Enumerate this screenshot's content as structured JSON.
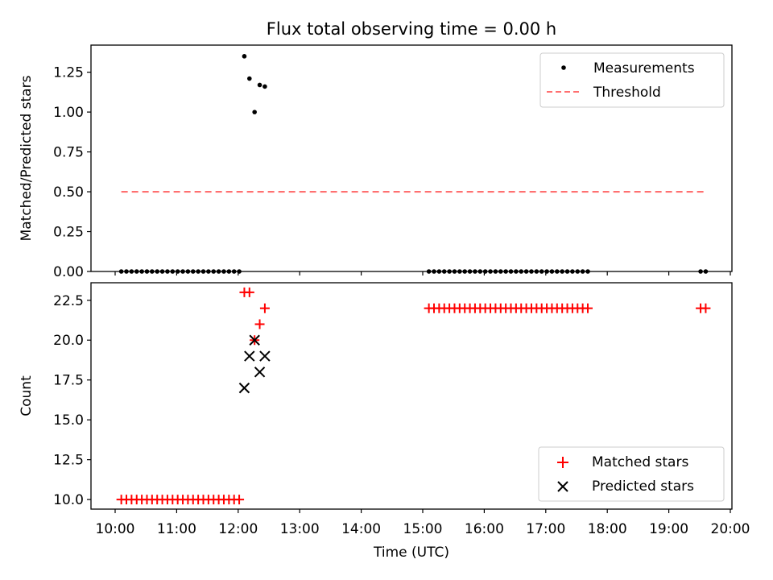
{
  "chart_data": [
    {
      "type": "scatter",
      "title": "Flux total observing time = 0.00 h",
      "ylabel": "Matched/Predicted stars",
      "ylim": [
        0,
        1.42
      ],
      "yticks": [
        "0.00",
        "0.25",
        "0.50",
        "0.75",
        "1.00",
        "1.25"
      ],
      "ytick_values": [
        0,
        0.25,
        0.5,
        0.75,
        1.0,
        1.25
      ],
      "grid": false,
      "legend": {
        "placement": "top-right",
        "entries": [
          "Measurements",
          "Threshold"
        ]
      },
      "series": [
        {
          "name": "Measurements",
          "marker": "dot",
          "color": "#000000",
          "x": [
            "10:06",
            "10:11",
            "10:16",
            "10:21",
            "10:26",
            "10:31",
            "10:36",
            "10:41",
            "10:46",
            "10:51",
            "10:56",
            "11:01",
            "11:06",
            "11:11",
            "11:16",
            "11:21",
            "11:26",
            "11:31",
            "11:36",
            "11:41",
            "11:46",
            "11:51",
            "11:56",
            "12:01",
            "12:06",
            "12:11",
            "12:16",
            "12:21",
            "12:26",
            "15:06",
            "15:11",
            "15:16",
            "15:21",
            "15:26",
            "15:31",
            "15:36",
            "15:41",
            "15:46",
            "15:51",
            "15:56",
            "16:01",
            "16:06",
            "16:11",
            "16:16",
            "16:21",
            "16:26",
            "16:31",
            "16:36",
            "16:41",
            "16:46",
            "16:51",
            "16:56",
            "17:01",
            "17:06",
            "17:11",
            "17:16",
            "17:21",
            "17:26",
            "17:31",
            "17:36",
            "17:41",
            "19:31",
            "19:36"
          ],
          "y": [
            0,
            0,
            0,
            0,
            0,
            0,
            0,
            0,
            0,
            0,
            0,
            0,
            0,
            0,
            0,
            0,
            0,
            0,
            0,
            0,
            0,
            0,
            0,
            0,
            1.35,
            1.21,
            1.0,
            1.17,
            1.16,
            0,
            0,
            0,
            0,
            0,
            0,
            0,
            0,
            0,
            0,
            0,
            0,
            0,
            0,
            0,
            0,
            0,
            0,
            0,
            0,
            0,
            0,
            0,
            0,
            0,
            0,
            0,
            0,
            0,
            0,
            0,
            0,
            0,
            0
          ]
        },
        {
          "name": "Threshold",
          "style": "dashed",
          "color": "#ff7070",
          "x": [
            "10:06",
            "19:36"
          ],
          "y": [
            0.5,
            0.5
          ]
        }
      ]
    },
    {
      "type": "scatter",
      "xlabel": "Time (UTC)",
      "ylabel": "Count",
      "ylim": [
        9.4,
        23.6
      ],
      "yticks": [
        "10.0",
        "12.5",
        "15.0",
        "17.5",
        "20.0",
        "22.5"
      ],
      "ytick_values": [
        10,
        12.5,
        15,
        17.5,
        20,
        22.5
      ],
      "xlim": [
        "10:00",
        "20:00"
      ],
      "xticks": [
        "10:00",
        "11:00",
        "12:00",
        "13:00",
        "14:00",
        "15:00",
        "16:00",
        "17:00",
        "18:00",
        "19:00",
        "20:00"
      ],
      "grid": false,
      "legend": {
        "placement": "bottom-right",
        "entries": [
          "Matched stars",
          "Predicted stars"
        ]
      },
      "series": [
        {
          "name": "Matched stars",
          "marker": "plus",
          "color": "#ff0000",
          "x": [
            "10:06",
            "10:11",
            "10:16",
            "10:21",
            "10:26",
            "10:31",
            "10:36",
            "10:41",
            "10:46",
            "10:51",
            "10:56",
            "11:01",
            "11:06",
            "11:11",
            "11:16",
            "11:21",
            "11:26",
            "11:31",
            "11:36",
            "11:41",
            "11:46",
            "11:51",
            "11:56",
            "12:01",
            "12:06",
            "12:11",
            "12:16",
            "12:21",
            "12:26",
            "15:06",
            "15:11",
            "15:16",
            "15:21",
            "15:26",
            "15:31",
            "15:36",
            "15:41",
            "15:46",
            "15:51",
            "15:56",
            "16:01",
            "16:06",
            "16:11",
            "16:16",
            "16:21",
            "16:26",
            "16:31",
            "16:36",
            "16:41",
            "16:46",
            "16:51",
            "16:56",
            "17:01",
            "17:06",
            "17:11",
            "17:16",
            "17:21",
            "17:26",
            "17:31",
            "17:36",
            "17:41",
            "19:31",
            "19:36"
          ],
          "y": [
            10,
            10,
            10,
            10,
            10,
            10,
            10,
            10,
            10,
            10,
            10,
            10,
            10,
            10,
            10,
            10,
            10,
            10,
            10,
            10,
            10,
            10,
            10,
            10,
            23,
            23,
            20,
            21,
            22,
            22,
            22,
            22,
            22,
            22,
            22,
            22,
            22,
            22,
            22,
            22,
            22,
            22,
            22,
            22,
            22,
            22,
            22,
            22,
            22,
            22,
            22,
            22,
            22,
            22,
            22,
            22,
            22,
            22,
            22,
            22,
            22,
            22,
            22
          ]
        },
        {
          "name": "Predicted stars",
          "marker": "x",
          "color": "#000000",
          "x": [
            "12:06",
            "12:11",
            "12:16",
            "12:21",
            "12:26"
          ],
          "y": [
            17,
            19,
            20,
            18,
            19
          ]
        }
      ]
    }
  ]
}
